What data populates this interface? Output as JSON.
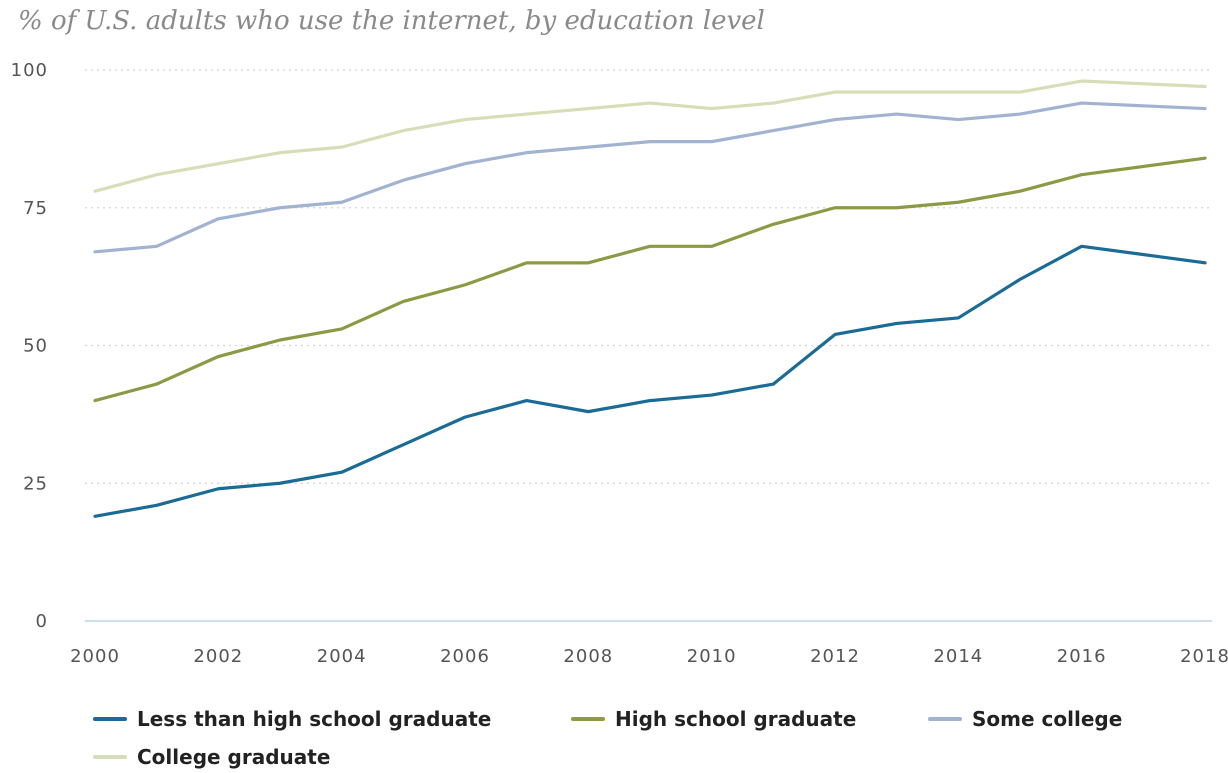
{
  "chart_data": {
    "type": "line",
    "title": "% of U.S. adults who use the internet, by education level",
    "x": [
      2000,
      2001,
      2002,
      2003,
      2004,
      2005,
      2006,
      2007,
      2008,
      2009,
      2010,
      2011,
      2012,
      2013,
      2014,
      2015,
      2016,
      2018
    ],
    "x_ticks": [
      "2000",
      "2002",
      "2004",
      "2006",
      "2008",
      "2010",
      "2012",
      "2014",
      "2016",
      "2018"
    ],
    "y_ticks": [
      "0",
      "25",
      "50",
      "75",
      "100"
    ],
    "xlim": [
      2000,
      2018
    ],
    "ylim": [
      0,
      100
    ],
    "grid": "horizontal dotted",
    "legend_position": "bottom",
    "series": [
      {
        "name": "Less than high school graduate",
        "color": "#1a6b96",
        "values": [
          19,
          21,
          24,
          25,
          27,
          32,
          37,
          40,
          38,
          40,
          41,
          43,
          52,
          54,
          55,
          62,
          68,
          65
        ]
      },
      {
        "name": "High school graduate",
        "color": "#8a9a45",
        "values": [
          40,
          43,
          48,
          51,
          53,
          58,
          61,
          65,
          65,
          68,
          68,
          72,
          75,
          75,
          76,
          78,
          81,
          84
        ]
      },
      {
        "name": "Some college",
        "color": "#a2b3d2",
        "values": [
          67,
          68,
          73,
          75,
          76,
          80,
          83,
          85,
          86,
          87,
          87,
          89,
          91,
          92,
          91,
          92,
          94,
          93
        ]
      },
      {
        "name": "College graduate",
        "color": "#d6deb8",
        "values": [
          78,
          81,
          83,
          85,
          86,
          89,
          91,
          92,
          93,
          94,
          93,
          94,
          96,
          96,
          96,
          96,
          98,
          97
        ]
      }
    ]
  }
}
